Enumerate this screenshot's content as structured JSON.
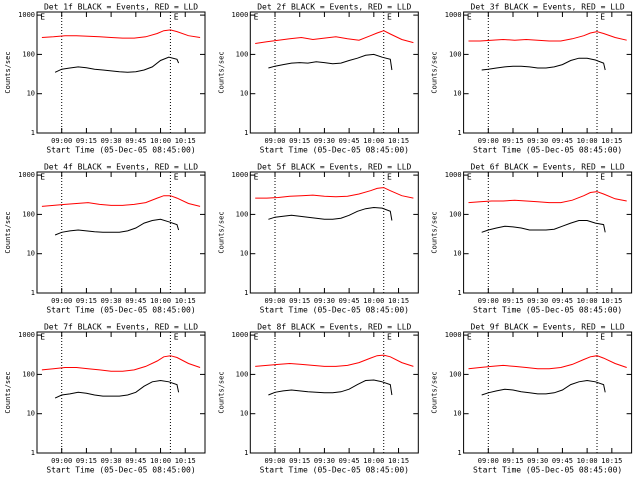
{
  "chart_data": [
    {
      "type": "line",
      "title": "Det 1f BLACK = Events, RED = LLD",
      "ylabel": "Counts/sec",
      "xlabel": "Start Time (05-Dec-05 08:45:00)",
      "log_y": true,
      "ylim": [
        1,
        1200
      ],
      "yticks": [
        1,
        10,
        100,
        1000
      ],
      "xlim": [
        "08:45",
        "10:27"
      ],
      "xticks": [
        "09:00",
        "09:15",
        "09:30",
        "09:45",
        "10:00",
        "10:15"
      ],
      "vlines": [
        "09:00",
        "10:06"
      ],
      "annotations": [
        {
          "text": "E",
          "x": "08:47"
        },
        {
          "text": "E",
          "x": "10:08"
        }
      ],
      "series": [
        {
          "color": "#ff0000",
          "x": [
            "08:48",
            "08:55",
            "09:02",
            "09:09",
            "09:16",
            "09:23",
            "09:30",
            "09:37",
            "09:44",
            "09:51",
            "09:58",
            "10:02",
            "10:06",
            "10:10",
            "10:17",
            "10:24"
          ],
          "values": [
            270,
            280,
            300,
            300,
            290,
            280,
            270,
            260,
            260,
            280,
            340,
            400,
            420,
            380,
            300,
            270
          ]
        },
        {
          "color": "#000000",
          "x": [
            "08:56",
            "09:00",
            "09:05",
            "09:10",
            "09:15",
            "09:20",
            "09:25",
            "09:30",
            "09:35",
            "09:40",
            "09:45",
            "09:50",
            "09:55",
            "10:00",
            "10:05",
            "10:10",
            "10:11"
          ],
          "values": [
            35,
            42,
            45,
            48,
            46,
            42,
            40,
            38,
            36,
            35,
            36,
            40,
            48,
            70,
            85,
            75,
            60
          ]
        }
      ]
    },
    {
      "type": "line",
      "title": "Det 2f BLACK = Events, RED = LLD",
      "ylabel": "Counts/sec",
      "xlabel": "Start Time (05-Dec-05 08:45:00)",
      "log_y": true,
      "ylim": [
        1,
        1200
      ],
      "yticks": [
        1,
        10,
        100,
        1000
      ],
      "xlim": [
        "08:45",
        "10:27"
      ],
      "xticks": [
        "09:00",
        "09:15",
        "09:30",
        "09:45",
        "10:00",
        "10:15"
      ],
      "vlines": [
        "09:00",
        "10:06"
      ],
      "annotations": [
        {
          "text": "E",
          "x": "08:47"
        },
        {
          "text": "E",
          "x": "10:08"
        }
      ],
      "series": [
        {
          "color": "#ff0000",
          "x": [
            "08:48",
            "08:55",
            "09:02",
            "09:09",
            "09:16",
            "09:23",
            "09:30",
            "09:37",
            "09:44",
            "09:51",
            "09:58",
            "10:02",
            "10:06",
            "10:10",
            "10:17",
            "10:24"
          ],
          "values": [
            190,
            210,
            230,
            250,
            270,
            240,
            260,
            280,
            250,
            230,
            300,
            350,
            400,
            330,
            240,
            200
          ]
        },
        {
          "color": "#000000",
          "x": [
            "08:56",
            "09:00",
            "09:05",
            "09:10",
            "09:15",
            "09:20",
            "09:25",
            "09:30",
            "09:35",
            "09:40",
            "09:45",
            "09:50",
            "09:55",
            "10:00",
            "10:05",
            "10:10",
            "10:11"
          ],
          "values": [
            45,
            50,
            55,
            60,
            62,
            60,
            65,
            62,
            58,
            60,
            70,
            80,
            95,
            100,
            85,
            75,
            40
          ]
        }
      ]
    },
    {
      "type": "line",
      "title": "Det 3f BLACK = Events, RED = LLD",
      "ylabel": "Counts/sec",
      "xlabel": "Start Time (05-Dec-05 08:45:00)",
      "log_y": true,
      "ylim": [
        1,
        1200
      ],
      "yticks": [
        1,
        10,
        100,
        1000
      ],
      "xlim": [
        "08:45",
        "10:27"
      ],
      "xticks": [
        "09:00",
        "09:15",
        "09:30",
        "09:45",
        "10:00",
        "10:15"
      ],
      "vlines": [
        "09:00",
        "10:06"
      ],
      "annotations": [
        {
          "text": "E",
          "x": "08:47"
        },
        {
          "text": "E",
          "x": "10:08"
        }
      ],
      "series": [
        {
          "color": "#ff0000",
          "x": [
            "08:48",
            "08:55",
            "09:02",
            "09:09",
            "09:16",
            "09:23",
            "09:30",
            "09:37",
            "09:44",
            "09:51",
            "09:58",
            "10:02",
            "10:06",
            "10:10",
            "10:17",
            "10:24"
          ],
          "values": [
            220,
            220,
            230,
            240,
            230,
            240,
            230,
            220,
            220,
            250,
            300,
            350,
            380,
            340,
            270,
            230
          ]
        },
        {
          "color": "#000000",
          "x": [
            "08:56",
            "09:00",
            "09:05",
            "09:10",
            "09:15",
            "09:20",
            "09:25",
            "09:30",
            "09:35",
            "09:40",
            "09:45",
            "09:50",
            "09:55",
            "10:00",
            "10:05",
            "10:10",
            "10:11"
          ],
          "values": [
            40,
            42,
            45,
            48,
            50,
            50,
            48,
            45,
            45,
            48,
            55,
            70,
            80,
            80,
            72,
            60,
            40
          ]
        }
      ]
    },
    {
      "type": "line",
      "title": "Det 4f BLACK = Events, RED = LLD",
      "ylabel": "Counts/sec",
      "xlabel": "Start Time (05-Dec-05 08:45:00)",
      "log_y": true,
      "ylim": [
        1,
        1200
      ],
      "yticks": [
        1,
        10,
        100,
        1000
      ],
      "xlim": [
        "08:45",
        "10:27"
      ],
      "xticks": [
        "09:00",
        "09:15",
        "09:30",
        "09:45",
        "10:00",
        "10:15"
      ],
      "vlines": [
        "09:00",
        "10:06"
      ],
      "annotations": [
        {
          "text": "E",
          "x": "08:47"
        },
        {
          "text": "E",
          "x": "10:08"
        }
      ],
      "series": [
        {
          "color": "#ff0000",
          "x": [
            "08:48",
            "08:55",
            "09:02",
            "09:09",
            "09:16",
            "09:23",
            "09:30",
            "09:37",
            "09:44",
            "09:51",
            "09:58",
            "10:02",
            "10:06",
            "10:10",
            "10:17",
            "10:24"
          ],
          "values": [
            160,
            170,
            180,
            190,
            200,
            180,
            170,
            170,
            180,
            200,
            260,
            300,
            300,
            260,
            190,
            160
          ]
        },
        {
          "color": "#000000",
          "x": [
            "08:56",
            "09:00",
            "09:05",
            "09:10",
            "09:15",
            "09:20",
            "09:25",
            "09:30",
            "09:35",
            "09:40",
            "09:45",
            "09:50",
            "09:55",
            "10:00",
            "10:05",
            "10:10",
            "10:11"
          ],
          "values": [
            30,
            35,
            38,
            40,
            38,
            36,
            35,
            35,
            35,
            38,
            45,
            60,
            70,
            75,
            65,
            55,
            40
          ]
        }
      ]
    },
    {
      "type": "line",
      "title": "Det 5f BLACK = Events, RED = LLD",
      "ylabel": "Counts/sec",
      "xlabel": "Start Time (05-Dec-05 08:45:00)",
      "log_y": true,
      "ylim": [
        1,
        1200
      ],
      "yticks": [
        1,
        10,
        100,
        1000
      ],
      "xlim": [
        "08:45",
        "10:27"
      ],
      "xticks": [
        "09:00",
        "09:15",
        "09:30",
        "09:45",
        "10:00",
        "10:15"
      ],
      "vlines": [
        "09:00",
        "10:06"
      ],
      "annotations": [
        {
          "text": "E",
          "x": "08:47"
        },
        {
          "text": "E",
          "x": "10:08"
        }
      ],
      "series": [
        {
          "color": "#ff0000",
          "x": [
            "08:48",
            "08:55",
            "09:02",
            "09:09",
            "09:16",
            "09:23",
            "09:30",
            "09:37",
            "09:44",
            "09:51",
            "09:58",
            "10:02",
            "10:06",
            "10:10",
            "10:17",
            "10:24"
          ],
          "values": [
            260,
            260,
            270,
            290,
            300,
            310,
            290,
            280,
            290,
            330,
            400,
            460,
            480,
            400,
            300,
            260
          ]
        },
        {
          "color": "#000000",
          "x": [
            "08:56",
            "09:00",
            "09:05",
            "09:10",
            "09:15",
            "09:20",
            "09:25",
            "09:30",
            "09:35",
            "09:40",
            "09:45",
            "09:50",
            "09:55",
            "10:00",
            "10:05",
            "10:10",
            "10:11"
          ],
          "values": [
            75,
            85,
            90,
            95,
            90,
            85,
            80,
            75,
            75,
            80,
            95,
            120,
            140,
            150,
            145,
            120,
            70
          ]
        }
      ]
    },
    {
      "type": "line",
      "title": "Det 6f BLACK = Events, RED = LLD",
      "ylabel": "Counts/sec",
      "xlabel": "Start Time (05-Dec-05 08:45:00)",
      "log_y": true,
      "ylim": [
        1,
        1200
      ],
      "yticks": [
        1,
        10,
        100,
        1000
      ],
      "xlim": [
        "08:45",
        "10:27"
      ],
      "xticks": [
        "09:00",
        "09:15",
        "09:30",
        "09:45",
        "10:00",
        "10:15"
      ],
      "vlines": [
        "09:00",
        "10:06"
      ],
      "annotations": [
        {
          "text": "E",
          "x": "08:47"
        },
        {
          "text": "E",
          "x": "10:08"
        }
      ],
      "series": [
        {
          "color": "#ff0000",
          "x": [
            "08:48",
            "08:55",
            "09:02",
            "09:09",
            "09:16",
            "09:23",
            "09:30",
            "09:37",
            "09:44",
            "09:51",
            "09:58",
            "10:02",
            "10:06",
            "10:10",
            "10:17",
            "10:24"
          ],
          "values": [
            200,
            210,
            220,
            220,
            230,
            220,
            210,
            200,
            200,
            230,
            300,
            360,
            380,
            330,
            250,
            220
          ]
        },
        {
          "color": "#000000",
          "x": [
            "08:56",
            "09:00",
            "09:05",
            "09:10",
            "09:15",
            "09:20",
            "09:25",
            "09:30",
            "09:35",
            "09:40",
            "09:45",
            "09:50",
            "09:55",
            "10:00",
            "10:05",
            "10:10",
            "10:11"
          ],
          "values": [
            35,
            40,
            45,
            50,
            48,
            45,
            40,
            40,
            40,
            42,
            50,
            60,
            70,
            70,
            60,
            55,
            35
          ]
        }
      ]
    },
    {
      "type": "line",
      "title": "Det 7f BLACK = Events, RED = LLD",
      "ylabel": "Counts/sec",
      "xlabel": "Start Time (05-Dec-05 08:45:00)",
      "log_y": true,
      "ylim": [
        1,
        1200
      ],
      "yticks": [
        1,
        10,
        100,
        1000
      ],
      "xlim": [
        "08:45",
        "10:27"
      ],
      "xticks": [
        "09:00",
        "09:15",
        "09:30",
        "09:45",
        "10:00",
        "10:15"
      ],
      "vlines": [
        "09:00",
        "10:06"
      ],
      "annotations": [
        {
          "text": "E",
          "x": "08:47"
        },
        {
          "text": "E",
          "x": "10:08"
        }
      ],
      "series": [
        {
          "color": "#ff0000",
          "x": [
            "08:48",
            "08:55",
            "09:02",
            "09:09",
            "09:16",
            "09:23",
            "09:30",
            "09:37",
            "09:44",
            "09:51",
            "09:58",
            "10:02",
            "10:06",
            "10:10",
            "10:17",
            "10:24"
          ],
          "values": [
            130,
            140,
            150,
            150,
            140,
            130,
            120,
            120,
            130,
            160,
            220,
            280,
            300,
            270,
            190,
            150
          ]
        },
        {
          "color": "#000000",
          "x": [
            "08:56",
            "09:00",
            "09:05",
            "09:10",
            "09:15",
            "09:20",
            "09:25",
            "09:30",
            "09:35",
            "09:40",
            "09:45",
            "09:50",
            "09:55",
            "10:00",
            "10:05",
            "10:10",
            "10:11"
          ],
          "values": [
            25,
            30,
            32,
            35,
            33,
            30,
            28,
            28,
            28,
            30,
            35,
            50,
            65,
            70,
            65,
            55,
            35
          ]
        }
      ]
    },
    {
      "type": "line",
      "title": "Det 8f BLACK = Events, RED = LLD",
      "ylabel": "Counts/sec",
      "xlabel": "Start Time (05-Dec-05 08:45:00)",
      "log_y": true,
      "ylim": [
        1,
        1200
      ],
      "yticks": [
        1,
        10,
        100,
        1000
      ],
      "xlim": [
        "08:45",
        "10:27"
      ],
      "xticks": [
        "09:00",
        "09:15",
        "09:30",
        "09:45",
        "10:00",
        "10:15"
      ],
      "vlines": [
        "09:00",
        "10:06"
      ],
      "annotations": [
        {
          "text": "E",
          "x": "08:47"
        },
        {
          "text": "E",
          "x": "10:08"
        }
      ],
      "series": [
        {
          "color": "#ff0000",
          "x": [
            "08:48",
            "08:55",
            "09:02",
            "09:09",
            "09:16",
            "09:23",
            "09:30",
            "09:37",
            "09:44",
            "09:51",
            "09:58",
            "10:02",
            "10:06",
            "10:10",
            "10:17",
            "10:24"
          ],
          "values": [
            160,
            170,
            180,
            190,
            180,
            170,
            160,
            160,
            170,
            200,
            260,
            300,
            310,
            280,
            200,
            160
          ]
        },
        {
          "color": "#000000",
          "x": [
            "08:56",
            "09:00",
            "09:05",
            "09:10",
            "09:15",
            "09:20",
            "09:25",
            "09:30",
            "09:35",
            "09:40",
            "09:45",
            "09:50",
            "09:55",
            "10:00",
            "10:05",
            "10:10",
            "10:11"
          ],
          "values": [
            30,
            35,
            38,
            40,
            38,
            36,
            35,
            34,
            34,
            36,
            42,
            55,
            70,
            72,
            65,
            55,
            30
          ]
        }
      ]
    },
    {
      "type": "line",
      "title": "Det 9f BLACK = Events, RED = LLD",
      "ylabel": "Counts/sec",
      "xlabel": "Start Time (05-Dec-05 08:45:00)",
      "log_y": true,
      "ylim": [
        1,
        1200
      ],
      "yticks": [
        1,
        10,
        100,
        1000
      ],
      "xlim": [
        "08:45",
        "10:27"
      ],
      "xticks": [
        "09:00",
        "09:15",
        "09:30",
        "09:45",
        "10:00",
        "10:15"
      ],
      "vlines": [
        "09:00",
        "10:06"
      ],
      "annotations": [
        {
          "text": "E",
          "x": "08:47"
        },
        {
          "text": "E",
          "x": "10:08"
        }
      ],
      "series": [
        {
          "color": "#ff0000",
          "x": [
            "08:48",
            "08:55",
            "09:02",
            "09:09",
            "09:16",
            "09:23",
            "09:30",
            "09:37",
            "09:44",
            "09:51",
            "09:58",
            "10:02",
            "10:06",
            "10:10",
            "10:17",
            "10:24"
          ],
          "values": [
            140,
            150,
            160,
            170,
            160,
            150,
            140,
            140,
            150,
            180,
            240,
            280,
            300,
            260,
            190,
            150
          ]
        },
        {
          "color": "#000000",
          "x": [
            "08:56",
            "09:00",
            "09:05",
            "09:10",
            "09:15",
            "09:20",
            "09:25",
            "09:30",
            "09:35",
            "09:40",
            "09:45",
            "09:50",
            "09:55",
            "10:00",
            "10:05",
            "10:10",
            "10:11"
          ],
          "values": [
            30,
            34,
            38,
            42,
            40,
            36,
            34,
            32,
            32,
            34,
            40,
            55,
            65,
            70,
            65,
            55,
            35
          ]
        }
      ]
    }
  ]
}
